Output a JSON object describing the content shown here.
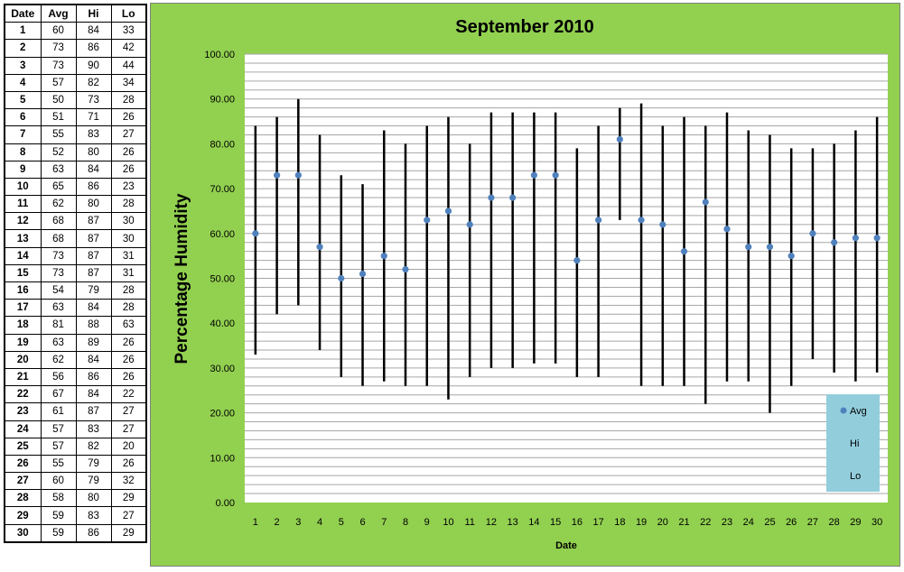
{
  "table": {
    "headers": [
      "Date",
      "Avg",
      "Hi",
      "Lo"
    ],
    "rows": [
      [
        1,
        60,
        84,
        33
      ],
      [
        2,
        73,
        86,
        42
      ],
      [
        3,
        73,
        90,
        44
      ],
      [
        4,
        57,
        82,
        34
      ],
      [
        5,
        50,
        73,
        28
      ],
      [
        6,
        51,
        71,
        26
      ],
      [
        7,
        55,
        83,
        27
      ],
      [
        8,
        52,
        80,
        26
      ],
      [
        9,
        63,
        84,
        26
      ],
      [
        10,
        65,
        86,
        23
      ],
      [
        11,
        62,
        80,
        28
      ],
      [
        12,
        68,
        87,
        30
      ],
      [
        13,
        68,
        87,
        30
      ],
      [
        14,
        73,
        87,
        31
      ],
      [
        15,
        73,
        87,
        31
      ],
      [
        16,
        54,
        79,
        28
      ],
      [
        17,
        63,
        84,
        28
      ],
      [
        18,
        81,
        88,
        63
      ],
      [
        19,
        63,
        89,
        26
      ],
      [
        20,
        62,
        84,
        26
      ],
      [
        21,
        56,
        86,
        26
      ],
      [
        22,
        67,
        84,
        22
      ],
      [
        23,
        61,
        87,
        27
      ],
      [
        24,
        57,
        83,
        27
      ],
      [
        25,
        57,
        82,
        20
      ],
      [
        26,
        55,
        79,
        26
      ],
      [
        27,
        60,
        79,
        32
      ],
      [
        28,
        58,
        80,
        29
      ],
      [
        29,
        59,
        83,
        27
      ],
      [
        30,
        59,
        86,
        29
      ]
    ]
  },
  "chart_data": {
    "type": "line",
    "subtype": "high-low-average",
    "title": "September 2010",
    "xlabel": "Date",
    "ylabel": "Percentage Humidity",
    "categories": [
      1,
      2,
      3,
      4,
      5,
      6,
      7,
      8,
      9,
      10,
      11,
      12,
      13,
      14,
      15,
      16,
      17,
      18,
      19,
      20,
      21,
      22,
      23,
      24,
      25,
      26,
      27,
      28,
      29,
      30
    ],
    "series": [
      {
        "name": "Avg",
        "values": [
          60,
          73,
          73,
          57,
          50,
          51,
          55,
          52,
          63,
          65,
          62,
          68,
          68,
          73,
          73,
          54,
          63,
          81,
          63,
          62,
          56,
          67,
          61,
          57,
          57,
          55,
          60,
          58,
          59,
          59
        ]
      },
      {
        "name": "Hi",
        "values": [
          84,
          86,
          90,
          82,
          73,
          71,
          83,
          80,
          84,
          86,
          80,
          87,
          87,
          87,
          87,
          79,
          84,
          88,
          89,
          84,
          86,
          84,
          87,
          83,
          82,
          79,
          79,
          80,
          83,
          86
        ]
      },
      {
        "name": "Lo",
        "values": [
          33,
          42,
          44,
          34,
          28,
          26,
          27,
          26,
          26,
          23,
          28,
          30,
          30,
          31,
          31,
          28,
          28,
          63,
          26,
          26,
          26,
          22,
          27,
          27,
          20,
          26,
          32,
          29,
          27,
          29
        ]
      }
    ],
    "ylim": [
      0,
      100
    ],
    "ytick_step": 10,
    "ytick_format": "0.00",
    "minor_grid_step": 2,
    "grid": true,
    "legend": {
      "position": "bottom-right",
      "entries": [
        "Avg",
        "Hi",
        "Lo"
      ]
    },
    "colors": {
      "panel_background": "#92d050",
      "plot_background": "#ffffff",
      "avg_marker": "#4f81bd",
      "hilo_line": "#000000",
      "legend_background": "#92cddc",
      "grid": "#a6a6a6"
    }
  }
}
